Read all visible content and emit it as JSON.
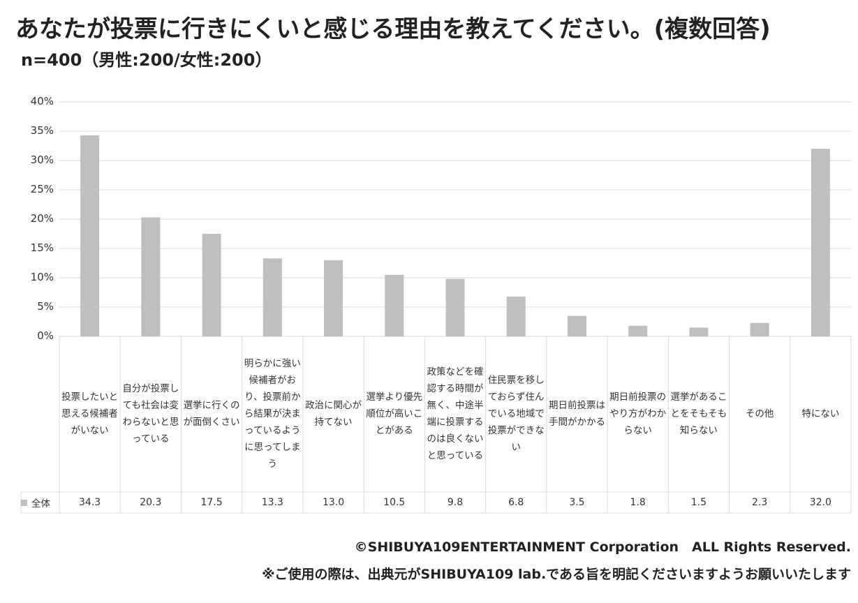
{
  "title": "あなたが投票に行きにくいと感じる理由を教えてください。(複数回答)",
  "subtitle": "n=400（男性:200/女性:200）",
  "footer": {
    "copyright": "©SHIBUYA109ENTERTAINMENT Corporation　ALL Rights Reserved.",
    "note": "※ご使用の際は、出典元がSHIBUYA109 lab.である旨を明記くださいますようお願いいたします"
  },
  "chart_data": {
    "type": "bar",
    "categories": [
      "投票したいと思える候補者がいない",
      "自分が投票しても社会は変わらないと思っている",
      "選挙に行くのが面倒くさい",
      "明らかに強い候補者がおり、投票前から結果が決まっているように思ってしまう",
      "政治に関心が持てない",
      "選挙より優先順位が高いことがある",
      "政策などを確認する時間が無く、中途半端に投票するのは良くないと思っている",
      "住民票を移しておらず住んでいる地域で投票ができない",
      "期日前投票は手間がかかる",
      "期日前投票のやり方がわからない",
      "選挙があることをそもそも知らない",
      "その他",
      "特にない"
    ],
    "series": [
      {
        "name": "全体",
        "values": [
          34.3,
          20.3,
          17.5,
          13.3,
          13.0,
          10.5,
          9.8,
          6.8,
          3.5,
          1.8,
          1.5,
          2.3,
          32.0
        ],
        "labels": [
          "34.3",
          "20.3",
          "17.5",
          "13.3",
          "13.0",
          "10.5",
          "9.8",
          "6.8",
          "3.5",
          "1.8",
          "1.5",
          "2.3",
          "32.0"
        ]
      }
    ],
    "yticks": [
      "0%",
      "5%",
      "10%",
      "15%",
      "20%",
      "25%",
      "30%",
      "35%",
      "40%"
    ],
    "ylim": [
      0,
      40
    ],
    "bar_color": "#bfbfbf",
    "grid_color": "#d9d9d9",
    "grid": true,
    "legend": "bottom-left table"
  }
}
